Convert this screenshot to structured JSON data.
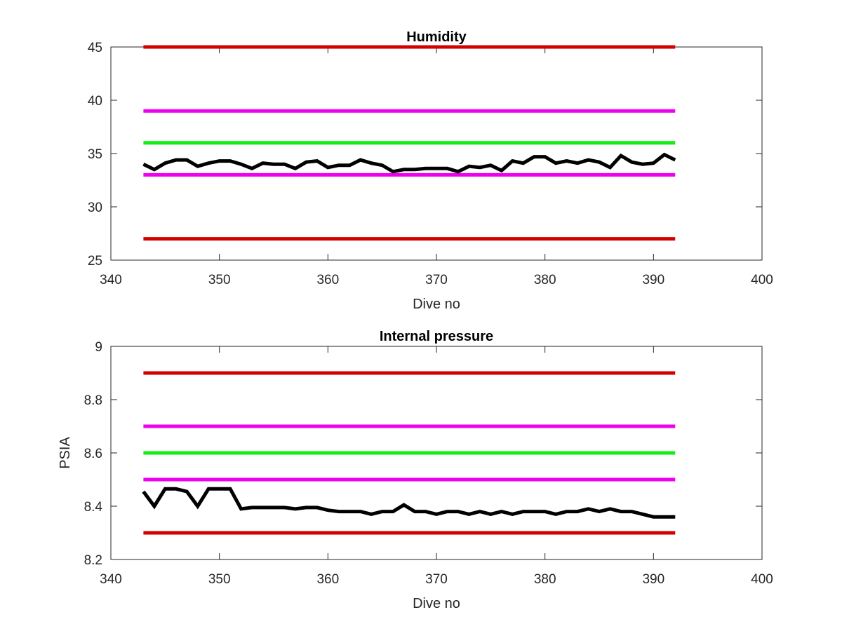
{
  "chart_data": [
    {
      "type": "line",
      "title": "Humidity",
      "xlabel": "Dive no",
      "ylabel": "",
      "xlim": [
        340,
        400
      ],
      "ylim": [
        25,
        45
      ],
      "xticks": [
        "340",
        "350",
        "360",
        "370",
        "380",
        "390",
        "400"
      ],
      "yticks": [
        "25",
        "30",
        "35",
        "40",
        "45"
      ],
      "grid": false,
      "reference_lines": [
        {
          "y": 45,
          "x_range": [
            343,
            392
          ],
          "color": "#d40000"
        },
        {
          "y": 39,
          "x_range": [
            343,
            392
          ],
          "color": "#ee00ee"
        },
        {
          "y": 36,
          "x_range": [
            343,
            392
          ],
          "color": "#11ee11"
        },
        {
          "y": 33,
          "x_range": [
            343,
            392
          ],
          "color": "#ee00ee"
        },
        {
          "y": 27,
          "x_range": [
            343,
            392
          ],
          "color": "#d40000"
        }
      ],
      "series": [
        {
          "color": "#000000",
          "x": [
            343,
            344,
            345,
            346,
            347,
            348,
            349,
            350,
            351,
            352,
            353,
            354,
            355,
            356,
            357,
            358,
            359,
            360,
            361,
            362,
            363,
            364,
            365,
            366,
            367,
            368,
            369,
            370,
            371,
            372,
            373,
            374,
            375,
            376,
            377,
            378,
            379,
            380,
            381,
            382,
            383,
            384,
            385,
            386,
            387,
            388,
            389,
            390,
            391,
            392
          ],
          "y": [
            34.0,
            33.5,
            34.1,
            34.4,
            34.4,
            33.8,
            34.1,
            34.3,
            34.3,
            34.0,
            33.6,
            34.1,
            34.0,
            34.0,
            33.6,
            34.2,
            34.3,
            33.7,
            33.9,
            33.9,
            34.4,
            34.1,
            33.9,
            33.3,
            33.5,
            33.5,
            33.6,
            33.6,
            33.6,
            33.3,
            33.8,
            33.7,
            33.9,
            33.4,
            34.3,
            34.1,
            34.7,
            34.7,
            34.1,
            34.3,
            34.1,
            34.4,
            34.2,
            33.7,
            34.8,
            34.2,
            34.0,
            34.1,
            34.9,
            34.4
          ]
        }
      ]
    },
    {
      "type": "line",
      "title": "Internal pressure",
      "xlabel": "Dive no",
      "ylabel": "PSIA",
      "xlim": [
        340,
        400
      ],
      "ylim": [
        8.2,
        9
      ],
      "xticks": [
        "340",
        "350",
        "360",
        "370",
        "380",
        "390",
        "400"
      ],
      "yticks": [
        "8.2",
        "8.4",
        "8.6",
        "8.8",
        "9"
      ],
      "grid": false,
      "reference_lines": [
        {
          "y": 8.9,
          "x_range": [
            343,
            392
          ],
          "color": "#d40000"
        },
        {
          "y": 8.7,
          "x_range": [
            343,
            392
          ],
          "color": "#ee00ee"
        },
        {
          "y": 8.6,
          "x_range": [
            343,
            392
          ],
          "color": "#11ee11"
        },
        {
          "y": 8.5,
          "x_range": [
            343,
            392
          ],
          "color": "#ee00ee"
        },
        {
          "y": 8.3,
          "x_range": [
            343,
            392
          ],
          "color": "#d40000"
        }
      ],
      "series": [
        {
          "color": "#000000",
          "x": [
            343,
            344,
            345,
            346,
            347,
            348,
            349,
            350,
            351,
            352,
            353,
            354,
            355,
            356,
            357,
            358,
            359,
            360,
            361,
            362,
            363,
            364,
            365,
            366,
            367,
            368,
            369,
            370,
            371,
            372,
            373,
            374,
            375,
            376,
            377,
            378,
            379,
            380,
            381,
            382,
            383,
            384,
            385,
            386,
            387,
            388,
            389,
            390,
            391,
            392
          ],
          "y": [
            8.455,
            8.4,
            8.465,
            8.465,
            8.455,
            8.4,
            8.465,
            8.465,
            8.465,
            8.39,
            8.395,
            8.395,
            8.395,
            8.395,
            8.39,
            8.395,
            8.395,
            8.385,
            8.38,
            8.38,
            8.38,
            8.37,
            8.38,
            8.38,
            8.405,
            8.38,
            8.38,
            8.37,
            8.38,
            8.38,
            8.37,
            8.38,
            8.37,
            8.38,
            8.37,
            8.38,
            8.38,
            8.38,
            8.37,
            8.38,
            8.38,
            8.39,
            8.38,
            8.39,
            8.38,
            8.38,
            8.37,
            8.36,
            8.36,
            8.36
          ]
        }
      ]
    }
  ]
}
